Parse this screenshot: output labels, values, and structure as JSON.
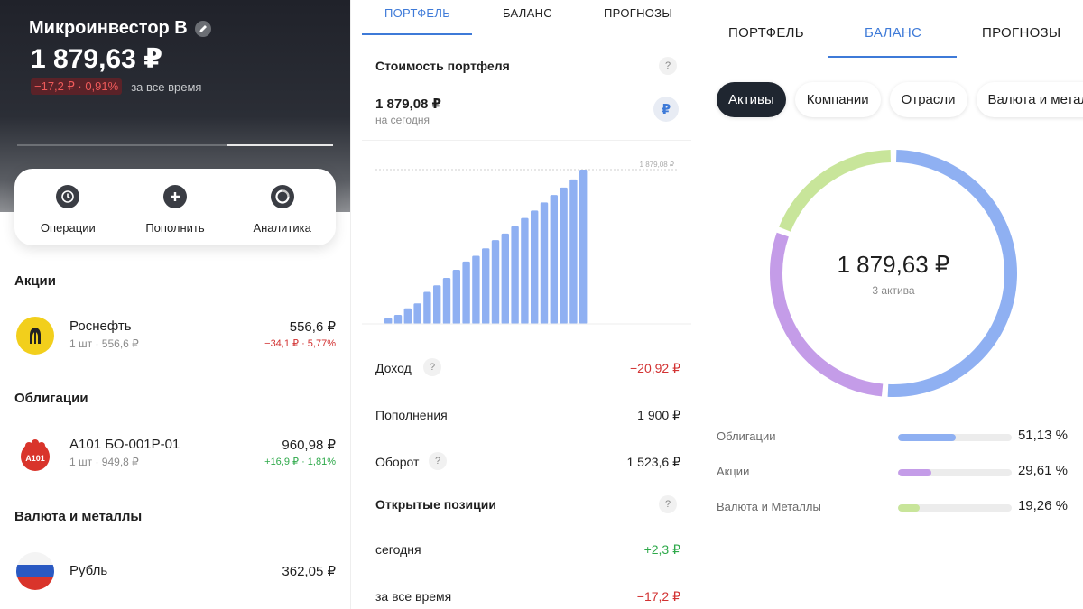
{
  "panel1": {
    "title": "Микроинвестор В",
    "total": "1 879,63 ₽",
    "change": "−17,2 ₽ · 0,91%",
    "period": "за все время",
    "actions": [
      {
        "label": "Операции",
        "icon": "clock-icon"
      },
      {
        "label": "Пополнить",
        "icon": "plus-icon"
      },
      {
        "label": "Аналитика",
        "icon": "pie-chart-icon"
      }
    ],
    "sections": {
      "stocks": {
        "title": "Акции",
        "item": {
          "name": "Роснефть",
          "sub": "1 шт · 556,6 ₽",
          "value": "556,6 ₽",
          "change": "−34,1 ₽ · 5,77%"
        }
      },
      "bonds": {
        "title": "Облигации",
        "item": {
          "name": "А101 БО-001Р-01",
          "sub": "1 шт · 949,8 ₽",
          "value": "960,98 ₽",
          "change": "+16,9 ₽ · 1,81%",
          "logo_text": "A101"
        }
      },
      "currency": {
        "title": "Валюта и металлы",
        "item": {
          "name": "Рубль",
          "value": "362,05 ₽"
        }
      }
    }
  },
  "panel2": {
    "tabs": [
      "ПОРТФЕЛЬ",
      "БАЛАНС",
      "ПРОГНОЗЫ"
    ],
    "value_title": "Стоимость портфеля",
    "qmark": "?",
    "amount": "1 879,08 ₽",
    "amount_sub": "на сегодня",
    "currency_symbol": "₽",
    "chart_data": {
      "type": "bar",
      "max_label": "1 879,08 ₽",
      "values": [
        70,
        110,
        190,
        250,
        390,
        470,
        560,
        660,
        760,
        830,
        920,
        1020,
        1100,
        1190,
        1290,
        1380,
        1480,
        1570,
        1660,
        1760,
        1879.08
      ],
      "ylim": [
        0,
        1879.08
      ]
    },
    "stats": [
      {
        "label": "Доход",
        "value": "−20,92 ₽",
        "help": true
      },
      {
        "label": "Пополнения",
        "value": "1 900 ₽",
        "help": false
      },
      {
        "label": "Оборот",
        "value": "1 523,6 ₽",
        "help": true
      }
    ],
    "positions_title": "Открытые позиции",
    "positions": [
      {
        "label": "сегодня",
        "value": "+2,3 ₽"
      },
      {
        "label": "за все время",
        "value": "−17,2 ₽"
      }
    ]
  },
  "panel3": {
    "tabs": [
      "ПОРТФЕЛЬ",
      "БАЛАНС",
      "ПРОГНОЗЫ"
    ],
    "chips": [
      "Активы",
      "Компании",
      "Отрасли",
      "Валюта и металлы"
    ],
    "total": "1 879,63 ₽",
    "total_sub": "3 актива",
    "colors": {
      "bonds": "#8fb0f2",
      "stocks": "#c49ce8",
      "currency": "#c8e59a"
    },
    "chart_data": {
      "type": "pie",
      "categories": [
        "Облигации",
        "Акции",
        "Валюта и Металлы"
      ],
      "values": [
        51.13,
        29.61,
        19.26
      ]
    },
    "legend": [
      {
        "label": "Облигации",
        "pct": "51,13 %"
      },
      {
        "label": "Акции",
        "pct": "29,61 %"
      },
      {
        "label": "Валюта и Металлы",
        "pct": "19,26 %"
      }
    ]
  }
}
